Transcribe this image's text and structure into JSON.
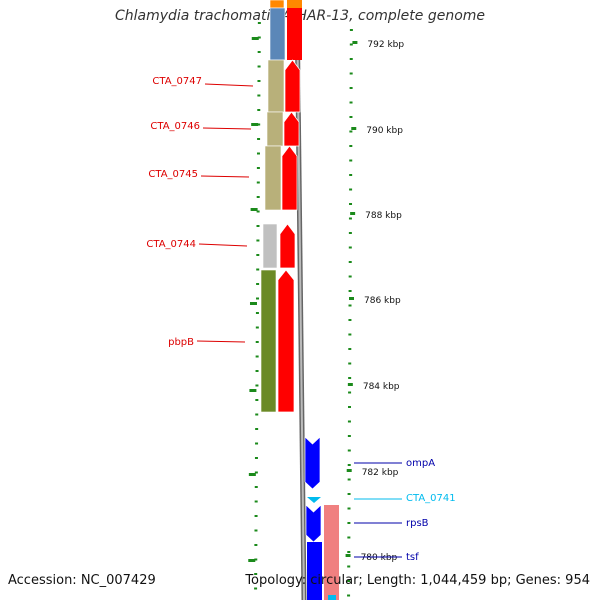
{
  "title": "Chlamydia trachomatis A/HAR-13, complete genome",
  "footer": {
    "accession": "Accession: NC_007429",
    "topology": "Topology: circular; Length: 1,044,459 bp; Genes: 954"
  },
  "colors": {
    "backbone": "#888888",
    "tick": "#1b8a1b",
    "left_gene_label": "#dd0000",
    "cds_forward": "#ff0000",
    "cds_reverse": "#0000ff",
    "trna": "#00bbee",
    "cds_light": "#f08080",
    "cog_tan": "#b8b07a",
    "cog_steel": "#5b87b8",
    "cog_olive": "#6b8a26",
    "cog_grey": "#c0c0c0",
    "orange": "#ff8800"
  },
  "scale": {
    "unit": "kbp",
    "ticks": [
      "792 kbp",
      "790 kbp",
      "788 kbp",
      "786 kbp",
      "784 kbp",
      "782 kbp",
      "780 kbp"
    ]
  },
  "gene_labels_left": [
    "CTA_0747",
    "CTA_0746",
    "CTA_0745",
    "CTA_0744",
    "pbpB"
  ],
  "gene_labels_right": [
    {
      "text": "ompA",
      "color": "#0000aa"
    },
    {
      "text": "CTA_0741",
      "color": "#00bbee"
    },
    {
      "text": "rpsB",
      "color": "#0000aa"
    },
    {
      "text": "tsf",
      "color": "#0000aa"
    }
  ]
}
